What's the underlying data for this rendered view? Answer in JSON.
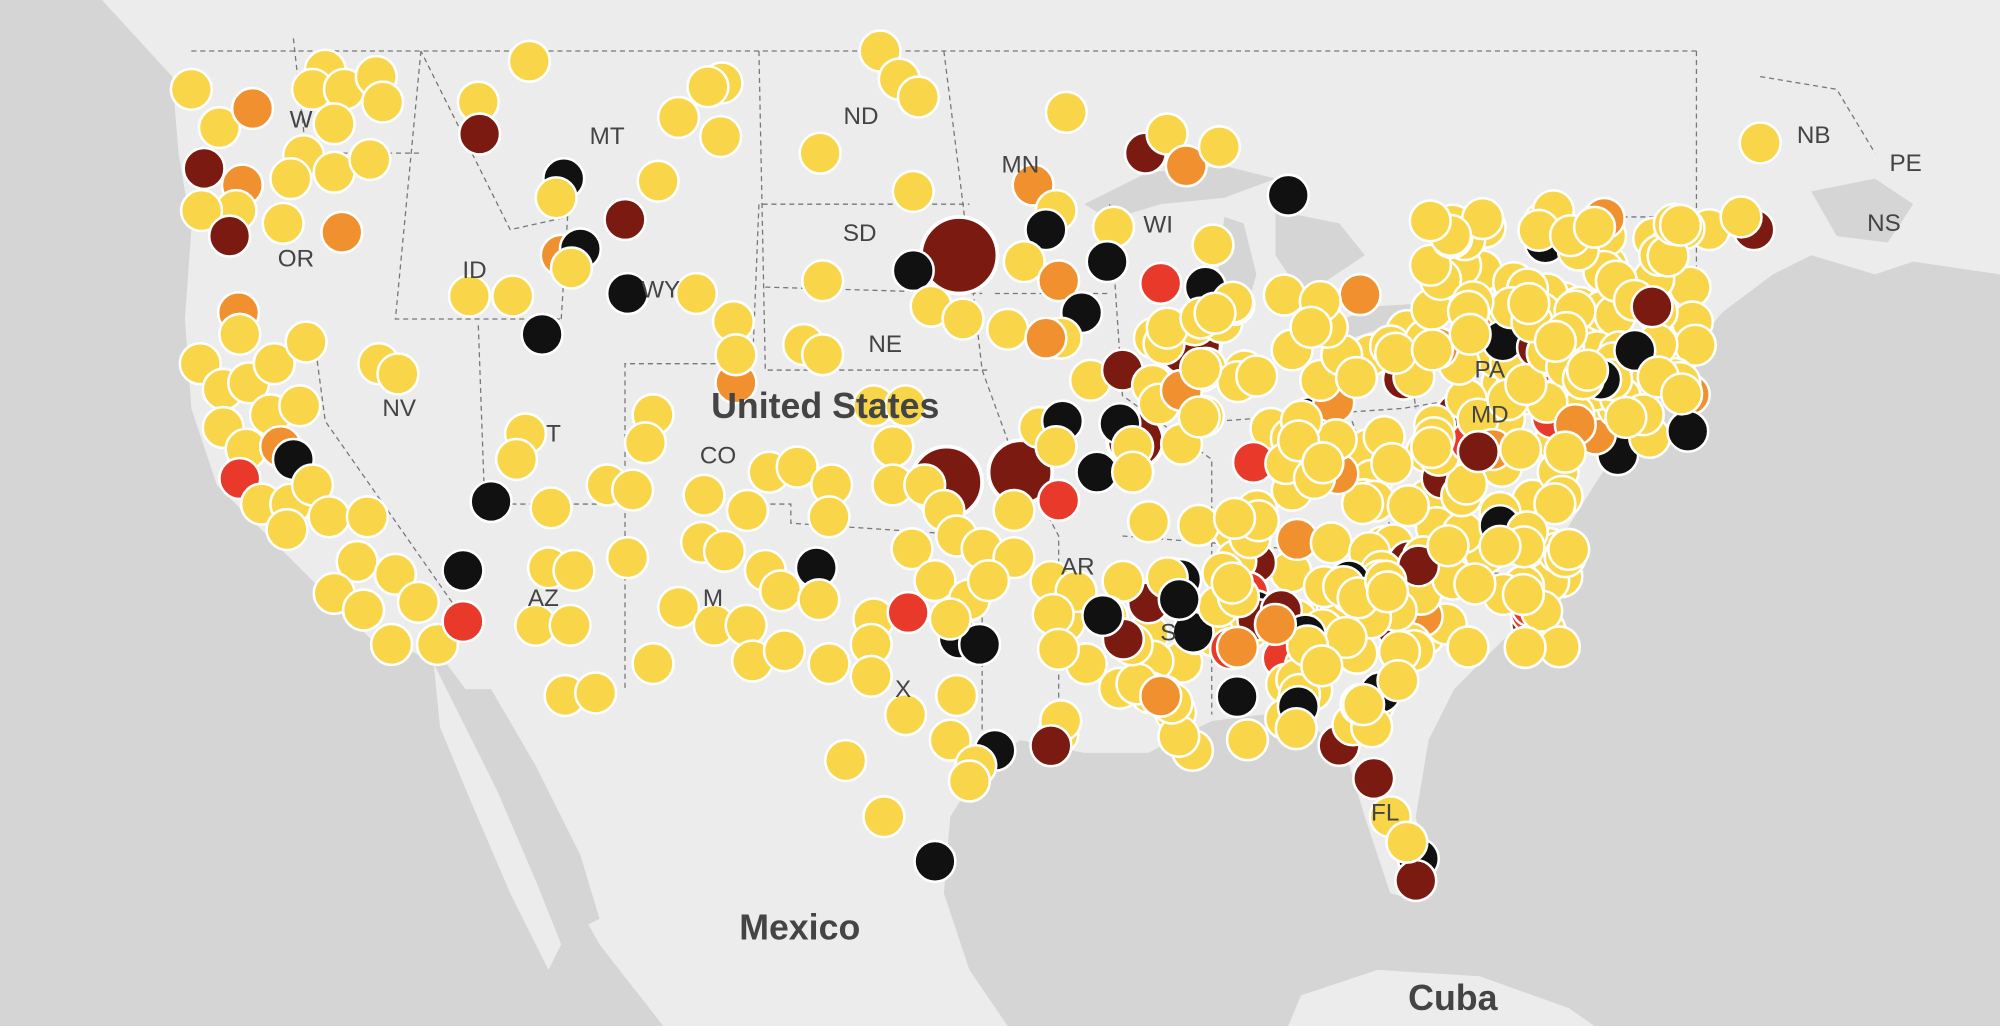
{
  "map": {
    "labels": [
      "W",
      "OR",
      "ID",
      "MT",
      "ND",
      "SD",
      "NE",
      "WY",
      "NV",
      "T",
      "CO",
      "AZ",
      "M",
      "X",
      "MN",
      "WI",
      "PA",
      "MD",
      "FL",
      "AR",
      "S",
      "NB",
      "PE",
      "NS"
    ],
    "countries": [
      "United States",
      "Mexico",
      "Cuba"
    ]
  }
}
